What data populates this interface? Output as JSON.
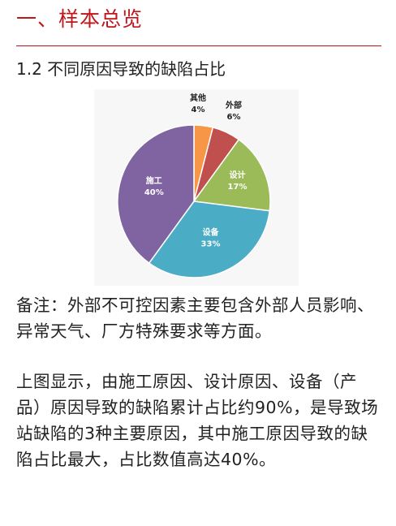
{
  "section": {
    "title": "一、样本总览"
  },
  "subsection": {
    "title": "1.2 不同原因导致的缺陷占比"
  },
  "chart_data": {
    "type": "pie",
    "categories": [
      "其他",
      "外部",
      "设计",
      "设备",
      "施工"
    ],
    "values": [
      4,
      6,
      17,
      33,
      40
    ],
    "value_labels": [
      "4%",
      "6%",
      "17%",
      "33%",
      "40%"
    ],
    "colors": [
      "#f79646",
      "#c0504d",
      "#9bbb59",
      "#4bacc6",
      "#8064a2"
    ],
    "title": "",
    "start_angle_deg": 0,
    "direction": "clockwise",
    "background": "#f7f7f7"
  },
  "note": {
    "text": "备注：外部不可控因素主要包含外部人员影响、异常天气、厂方特殊要求等方面。"
  },
  "summary": {
    "text": "上图显示，由施工原因、设计原因、设备（产品）原因导致的缺陷累计占比约90%，是导致场站缺陷的3种主要原因，其中施工原因导致的缺陷占比最大，占比数值高达40%。"
  }
}
